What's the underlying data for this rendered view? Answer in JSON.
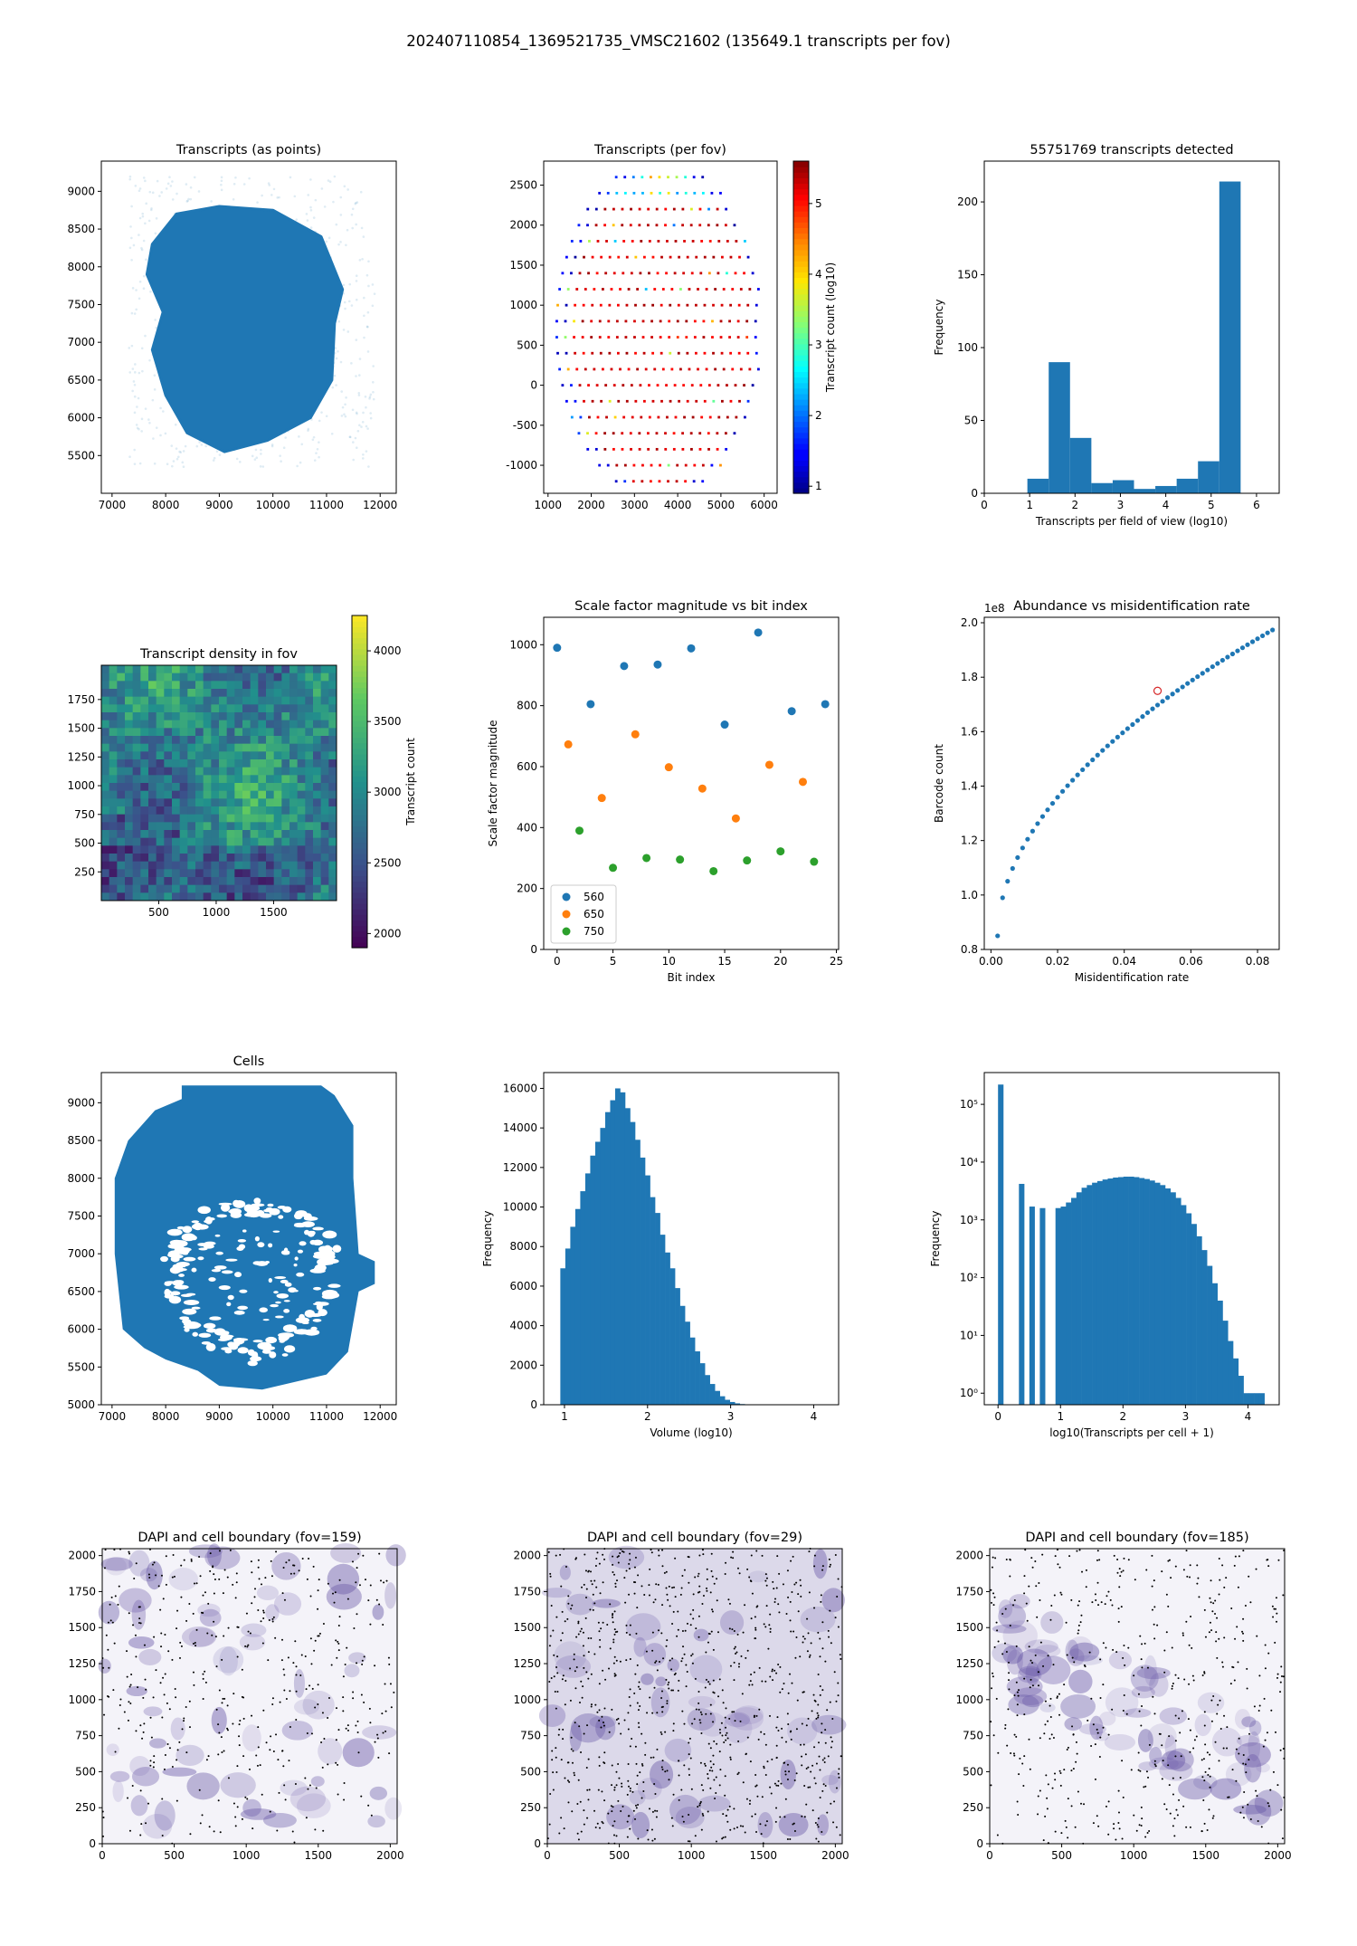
{
  "suptitle": "202407110854_1369521735_VMSC21602 (135649.1 transcripts per fov)",
  "colors": {
    "c560": "#1f77b4",
    "c650": "#ff7f0e",
    "c750": "#2ca02c",
    "blue": "#1f77b4",
    "dapi": "#6a5aa8"
  },
  "chart_data": [
    {
      "id": "transcripts_points",
      "type": "scatter",
      "title": "Transcripts (as points)",
      "xlim": [
        6800,
        12300
      ],
      "ylim": [
        5000,
        9400
      ],
      "xticks": [
        7000,
        8000,
        9000,
        10000,
        11000,
        12000
      ],
      "yticks": [
        5500,
        6000,
        6500,
        7000,
        7500,
        8000,
        8500,
        9000
      ],
      "xlabel": "",
      "ylabel": ""
    },
    {
      "id": "transcripts_per_fov",
      "type": "scatter",
      "title": "Transcripts (per fov)",
      "xlim": [
        900,
        6300
      ],
      "ylim": [
        -1350,
        2800
      ],
      "xticks": [
        1000,
        2000,
        3000,
        4000,
        5000,
        6000
      ],
      "yticks": [
        -1000,
        -500,
        0,
        500,
        1000,
        1500,
        2000,
        2500
      ],
      "colorbar": {
        "label": "Transcript count (log10)",
        "min": 0.9,
        "max": 5.6,
        "ticks": [
          1,
          2,
          3,
          4,
          5
        ],
        "cmap": "jet"
      }
    },
    {
      "id": "transcripts_hist",
      "type": "bar",
      "title": "55751769 transcripts detected",
      "xlabel": "Transcripts per field of view (log10)",
      "ylabel": "Frequency",
      "xlim": [
        0,
        6.5
      ],
      "ylim": [
        0,
        228
      ],
      "xticks": [
        0,
        1,
        2,
        3,
        4,
        5,
        6
      ],
      "yticks": [
        0,
        50,
        100,
        150,
        200
      ],
      "bin_edges": [
        0.95,
        1.42,
        1.89,
        2.36,
        2.83,
        3.3,
        3.77,
        4.24,
        4.71,
        5.18,
        5.65
      ],
      "values": [
        10,
        90,
        38,
        7,
        9,
        3,
        5,
        10,
        22,
        214
      ]
    },
    {
      "id": "density_fov",
      "type": "heatmap",
      "title": "Transcript density in fov",
      "xlim": [
        0,
        2048
      ],
      "ylim": [
        0,
        2048
      ],
      "xticks": [
        500,
        1000,
        1500
      ],
      "yticks": [
        250,
        500,
        750,
        1000,
        1250,
        1500,
        1750
      ],
      "colorbar": {
        "label": "Transcript count",
        "min": 1900,
        "max": 4250,
        "ticks": [
          2000,
          2500,
          3000,
          3500,
          4000
        ],
        "cmap": "viridis"
      }
    },
    {
      "id": "scale_factor",
      "type": "scatter",
      "title": "Scale factor magnitude vs bit index",
      "xlabel": "Bit index",
      "ylabel": "Scale factor magnitude",
      "xlim": [
        -1.2,
        25.2
      ],
      "ylim": [
        0,
        1090
      ],
      "xticks": [
        0,
        5,
        10,
        15,
        20,
        25
      ],
      "yticks": [
        0,
        200,
        400,
        600,
        800,
        1000
      ],
      "legend": "lower left",
      "series": [
        {
          "name": "560",
          "x": [
            0,
            3,
            6,
            9,
            12,
            15,
            18,
            21,
            24
          ],
          "y": [
            990,
            805,
            930,
            935,
            988,
            738,
            1040,
            782,
            805
          ]
        },
        {
          "name": "650",
          "x": [
            1,
            4,
            7,
            10,
            13,
            16,
            19,
            22
          ],
          "y": [
            673,
            497,
            706,
            598,
            528,
            430,
            606,
            550
          ]
        },
        {
          "name": "750",
          "x": [
            2,
            5,
            8,
            11,
            14,
            17,
            20,
            23
          ],
          "y": [
            390,
            268,
            300,
            295,
            257,
            292,
            322,
            288
          ]
        }
      ]
    },
    {
      "id": "abundance",
      "type": "scatter",
      "title": "Abundance vs misidentification rate",
      "xlabel": "Misidentification rate",
      "ylabel": "Barcode count",
      "offset_label": "1e8",
      "xlim": [
        -0.002,
        0.0865
      ],
      "ylim": [
        0.8,
        2.02
      ],
      "xticks": [
        0.0,
        0.02,
        0.04,
        0.06,
        0.08
      ],
      "xtick_labels": [
        "0.00",
        "0.02",
        "0.04",
        "0.06",
        "0.08"
      ],
      "yticks": [
        0.8,
        1.0,
        1.2,
        1.4,
        1.6,
        1.8,
        2.0
      ],
      "ytick_labels": [
        "0.8",
        "1.0",
        "1.2",
        "1.4",
        "1.6",
        "1.8",
        "2.0"
      ],
      "highlight": {
        "x": 0.05,
        "y": 1.75
      }
    },
    {
      "id": "cells",
      "type": "scatter",
      "title": "Cells",
      "xlim": [
        6800,
        12300
      ],
      "ylim": [
        5000,
        9400
      ],
      "xticks": [
        7000,
        8000,
        9000,
        10000,
        11000,
        12000
      ],
      "yticks": [
        5000,
        5500,
        6000,
        6500,
        7000,
        7500,
        8000,
        8500,
        9000
      ]
    },
    {
      "id": "volume_hist",
      "type": "bar",
      "title": "",
      "xlabel": "Volume (log10)",
      "ylabel": "Frequency",
      "xlim": [
        0.75,
        4.3
      ],
      "ylim": [
        0,
        16800
      ],
      "xticks": [
        1,
        2,
        3,
        4
      ],
      "yticks": [
        0,
        2000,
        4000,
        6000,
        8000,
        10000,
        12000,
        14000,
        16000
      ],
      "bin_start": 0.95,
      "bin_width": 0.06,
      "values": [
        6900,
        7900,
        9000,
        9900,
        10800,
        11700,
        12600,
        13300,
        14000,
        14800,
        15400,
        16000,
        15800,
        15000,
        14300,
        13400,
        12500,
        11600,
        10500,
        9700,
        8600,
        7700,
        6900,
        5900,
        5000,
        4200,
        3400,
        2700,
        2100,
        1500,
        1050,
        700,
        430,
        250,
        140,
        70,
        35,
        15,
        6,
        3
      ]
    },
    {
      "id": "transcripts_per_cell",
      "type": "bar",
      "title": "",
      "xlabel": "log10(Transcripts per cell + 1)",
      "ylabel": "Frequency",
      "yscale": "log",
      "xlim": [
        -0.22,
        4.5
      ],
      "ylim_log10": [
        -0.2,
        5.55
      ],
      "xticks": [
        0,
        1,
        2,
        3,
        4
      ],
      "ytick_exps": [
        0,
        1,
        2,
        3,
        4,
        5
      ],
      "ytick_labels": [
        "10⁰",
        "10¹",
        "10²",
        "10³",
        "10⁴",
        "10⁵"
      ],
      "bin_width": 0.0836,
      "values": [
        220000,
        0,
        0,
        0,
        4200,
        0,
        1700,
        0,
        1600,
        0,
        0,
        1600,
        1700,
        2000,
        2400,
        3000,
        3600,
        4000,
        4400,
        4700,
        5000,
        5200,
        5400,
        5500,
        5600,
        5600,
        5500,
        5300,
        5100,
        4800,
        4400,
        4000,
        3500,
        3000,
        2400,
        1800,
        1300,
        850,
        520,
        300,
        160,
        80,
        40,
        18,
        8,
        4,
        2,
        1,
        1,
        1,
        1
      ]
    },
    {
      "id": "dapi_159",
      "type": "image",
      "title": "DAPI and cell boundary (fov=159)",
      "xlim": [
        0,
        2048
      ],
      "ylim": [
        0,
        2048
      ],
      "xticks": [
        0,
        500,
        1000,
        1500,
        2000
      ],
      "yticks": [
        0,
        250,
        500,
        750,
        1000,
        1250,
        1500,
        1750,
        2000
      ],
      "seed": 159
    },
    {
      "id": "dapi_29",
      "type": "image",
      "title": "DAPI and cell boundary (fov=29)",
      "xlim": [
        0,
        2048
      ],
      "ylim": [
        0,
        2048
      ],
      "xticks": [
        0,
        500,
        1000,
        1500,
        2000
      ],
      "yticks": [
        0,
        250,
        500,
        750,
        1000,
        1250,
        1500,
        1750,
        2000
      ],
      "seed": 29
    },
    {
      "id": "dapi_185",
      "type": "image",
      "title": "DAPI and cell boundary (fov=185)",
      "xlim": [
        0,
        2048
      ],
      "ylim": [
        0,
        2048
      ],
      "xticks": [
        0,
        500,
        1000,
        1500,
        2000
      ],
      "yticks": [
        0,
        250,
        500,
        750,
        1000,
        1250,
        1500,
        1750,
        2000
      ],
      "seed": 185
    }
  ]
}
